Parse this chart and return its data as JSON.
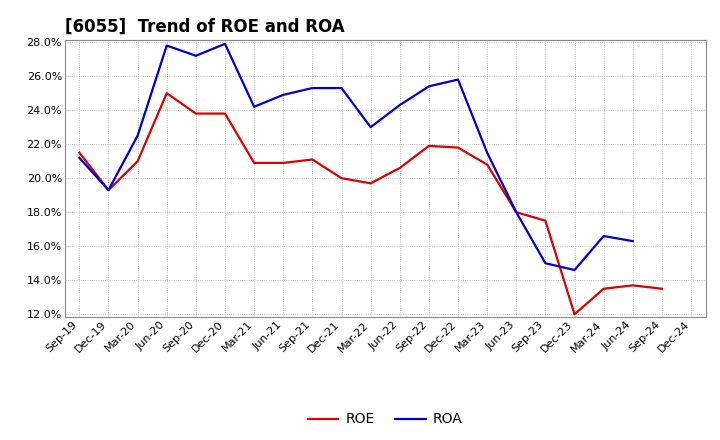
{
  "title": "[6055]  Trend of ROE and ROA",
  "labels": [
    "Sep-19",
    "Dec-19",
    "Mar-20",
    "Jun-20",
    "Sep-20",
    "Dec-20",
    "Mar-21",
    "Jun-21",
    "Sep-21",
    "Dec-21",
    "Mar-22",
    "Jun-22",
    "Sep-22",
    "Dec-22",
    "Mar-23",
    "Jun-23",
    "Sep-23",
    "Dec-23",
    "Mar-24",
    "Jun-24",
    "Sep-24",
    "Dec-24"
  ],
  "ROE": [
    21.5,
    19.3,
    21.0,
    25.0,
    23.8,
    23.8,
    20.9,
    20.9,
    21.1,
    20.0,
    19.7,
    20.6,
    21.9,
    21.8,
    20.8,
    18.0,
    17.5,
    12.0,
    13.5,
    13.7,
    13.5,
    null
  ],
  "ROA": [
    21.2,
    19.3,
    22.5,
    27.8,
    27.2,
    27.9,
    24.2,
    24.9,
    25.3,
    25.3,
    23.0,
    24.3,
    25.4,
    25.8,
    21.5,
    18.0,
    15.0,
    14.6,
    16.6,
    16.3,
    null,
    null
  ],
  "roe_color": "#dd0000",
  "roa_color": "#0000cc",
  "background_color": "#ffffff",
  "grid_color": "#999999",
  "ylim": [
    12.0,
    28.0
  ],
  "yticks": [
    12.0,
    14.0,
    16.0,
    18.0,
    20.0,
    22.0,
    24.0,
    26.0,
    28.0
  ],
  "title_fontsize": 12,
  "legend_fontsize": 10,
  "tick_fontsize": 8,
  "linewidth": 1.6
}
